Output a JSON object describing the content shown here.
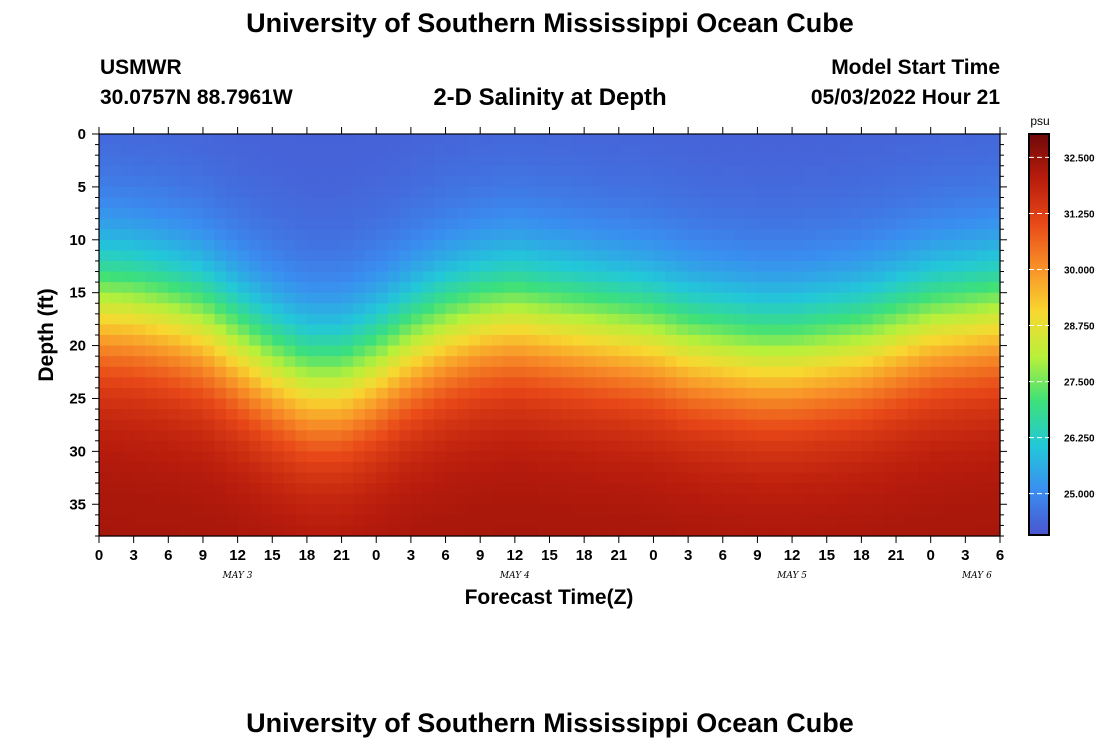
{
  "header": {
    "title": "University of Southern Mississippi Ocean Cube",
    "station_name": "USMWR",
    "station_coords": "30.0757N  88.7961W",
    "plot_title": "2-D Salinity at Depth",
    "start_label": "Model Start Time",
    "start_value": "05/03/2022 Hour 21"
  },
  "footer": {
    "title": "University of Southern Mississippi Ocean Cube"
  },
  "chart_data": {
    "type": "heatmap",
    "xlabel": "Forecast Time(Z)",
    "ylabel": "Depth (ft)",
    "y_inverted": true,
    "ylim": [
      0,
      38
    ],
    "y_ticks": [
      0,
      5,
      10,
      15,
      20,
      25,
      30,
      35
    ],
    "x_hours_range": [
      0,
      78
    ],
    "x_tick_step_hours": 3,
    "x_tick_labels": [
      "0",
      "3",
      "6",
      "9",
      "12",
      "15",
      "18",
      "21",
      "0",
      "3",
      "6",
      "9",
      "12",
      "15",
      "18",
      "21",
      "0",
      "3",
      "6",
      "9",
      "12",
      "15",
      "18",
      "21",
      "0",
      "3",
      "6"
    ],
    "day_labels": [
      {
        "label": "MAY 3",
        "hour": 12
      },
      {
        "label": "MAY 4",
        "hour": 36
      },
      {
        "label": "MAY 5",
        "hour": 60
      },
      {
        "label": "MAY 6",
        "hour": 76
      }
    ],
    "colorbar": {
      "unit": "psu",
      "min": 24.1,
      "max": 33.0,
      "tick_values": [
        25.0,
        26.25,
        27.5,
        28.75,
        30.0,
        31.25,
        32.5
      ],
      "tick_labels": [
        "25.000",
        "26.250",
        "27.500",
        "28.750",
        "30.000",
        "31.250",
        "32.500"
      ],
      "colors": [
        "#4a55d0",
        "#3a8df0",
        "#22c8d8",
        "#3de07a",
        "#b8f03a",
        "#f8d830",
        "#f89028",
        "#e84818",
        "#b81c0c",
        "#700808"
      ]
    },
    "halocline_depth_ft": {
      "hours": [
        0,
        3,
        6,
        9,
        12,
        15,
        18,
        21,
        24,
        27,
        30,
        33,
        36,
        39,
        42,
        45,
        48,
        51,
        54,
        57,
        60,
        63,
        66,
        69,
        72,
        75,
        78
      ],
      "values": [
        16.0,
        16.3,
        17.0,
        18.0,
        20.0,
        22.0,
        23.5,
        23.5,
        22.0,
        20.0,
        18.5,
        17.5,
        17.0,
        17.5,
        18.0,
        18.5,
        19.0,
        20.0,
        20.5,
        21.0,
        21.0,
        20.5,
        20.0,
        19.0,
        18.0,
        17.5,
        17.0
      ]
    },
    "surface_salinity_psu": 24.3,
    "deep_salinity_psu": 32.3
  }
}
